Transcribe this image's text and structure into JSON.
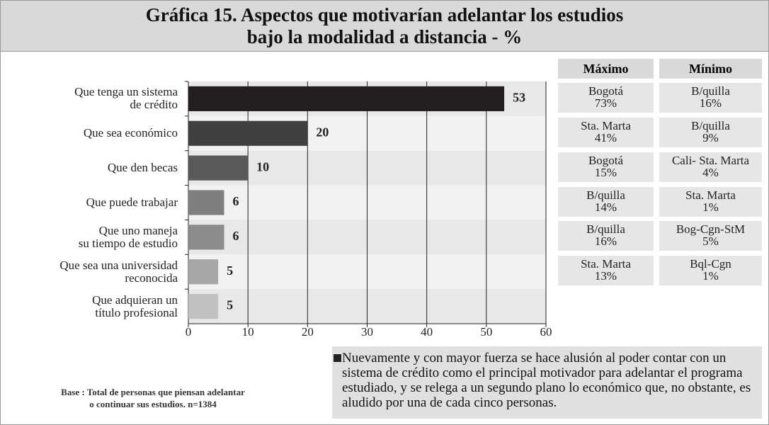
{
  "chart_data": {
    "type": "bar",
    "orientation": "horizontal",
    "title": "Gráfica 15. Aspectos que motivarían adelantar los estudios\nbajo la modalidad a distancia - %",
    "categories": [
      "Que tenga un sistema\nde crédito",
      "Que sea económico",
      "Que den becas",
      "Que puede trabajar",
      "Que uno maneja\nsu tiempo de estudio",
      "Que sea una universidad\nreconocida",
      "Que adquieran un\ntítulo profesional"
    ],
    "values": [
      53,
      20,
      10,
      6,
      6,
      5,
      5
    ],
    "colors": [
      "#231f20",
      "#404040",
      "#595959",
      "#7f7f7f",
      "#8c8c8c",
      "#a6a6a6",
      "#c0c0c0"
    ],
    "xlim": [
      0,
      60
    ],
    "xticks": [
      0,
      10,
      20,
      30,
      40,
      50,
      60
    ],
    "grid": true
  },
  "table": {
    "header": [
      "Máximo",
      "Mínimo"
    ],
    "rows": [
      [
        "Bogotá\n73%",
        "B/quilla\n16%"
      ],
      [
        "Sta. Marta\n41%",
        "B/quilla\n9%"
      ],
      [
        "Bogotá\n15%",
        "Cali- Sta. Marta\n4%"
      ],
      [
        "B/quilla\n14%",
        "Sta. Marta\n1%"
      ],
      [
        "B/quilla\n16%",
        "Bog-Cgn-StM\n5%"
      ],
      [
        "Sta. Marta\n13%",
        "Bql-Cgn\n1%"
      ]
    ]
  },
  "note": "Nuevamente y con mayor fuerza se hace alusión al poder contar con un sistema de crédito como el principal motivador para adelantar el programa estudiado, y se relega a un segundo plano lo económico que, no obstante, es aludido por una de cada cinco personas.",
  "base": "Base : Total de personas que piensan adelantar\no continuar sus estudios. n=1384"
}
